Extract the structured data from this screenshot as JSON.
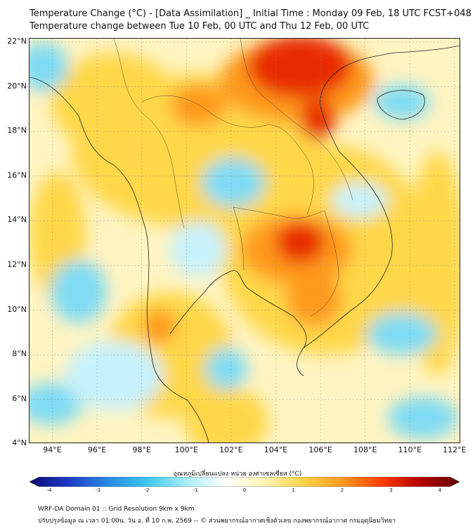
{
  "title_line1": "Temperature Change (°C) - [Data Assimilation] _ Initial Time : Monday 09 Feb, 18 UTC FCST+048",
  "title_line2": "Temperature change between Tue 10 Feb, 00 UTC and Thu 12 Feb, 00 UTC",
  "lat_labels": [
    "22°N",
    "20°N",
    "18°N",
    "16°N",
    "14°N",
    "12°N",
    "10°N",
    "8°N",
    "6°N",
    "4°N"
  ],
  "lon_labels": [
    "94°E",
    "96°E",
    "98°E",
    "100°E",
    "102°E",
    "104°E",
    "106°E",
    "108°E",
    "110°E",
    "112°E"
  ],
  "colorbar": {
    "title": "อุณหภูมิเปลี่ยนแปลง หน่วย องศาเซลเซียส (°C)",
    "ticks": [
      "-4",
      "-3",
      "-2",
      "-1",
      "0",
      "1",
      "2",
      "3",
      "4"
    ],
    "colors": [
      "#0a0a6e",
      "#1e3cc8",
      "#2a8ae0",
      "#3cc8f0",
      "#a8eef8",
      "#ffffff",
      "#fff6b4",
      "#ffd24a",
      "#ff9a1e",
      "#ff3c00",
      "#b40000",
      "#640000"
    ]
  },
  "footer_line1": "WRF-DA Domain 01 :: Grid Resolution 9km x 9km",
  "footer_line2": "ปรับปรุงข้อมูล ณ เวลา 01:00น. วัน อ. ที่ 10 ก.พ. 2569 -- © ส่วนพยากรณ์อากาศเชิงตัวเลข กองพยากรณ์อากาศ กรมอุตุนิยมวิทยา",
  "map_colors": {
    "background": "#fff4c2",
    "warm": "#ffd84a",
    "orange": "#ff9a1e",
    "red": "#e82a00",
    "cool": "#7fdcf4",
    "light_cool": "#c8f2fb",
    "border": "#222222"
  }
}
